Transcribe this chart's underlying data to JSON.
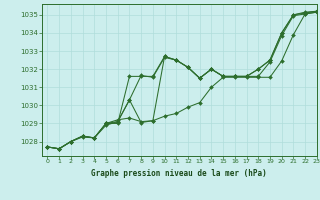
{
  "title": "Graphe pression niveau de la mer (hPa)",
  "bg_color": "#cceeed",
  "grid_color": "#b0dddb",
  "line_color": "#2d6e2d",
  "marker_color": "#2d6e2d",
  "xlim": [
    -0.5,
    23
  ],
  "ylim": [
    1027.2,
    1035.6
  ],
  "yticks": [
    1028,
    1029,
    1030,
    1031,
    1032,
    1033,
    1034,
    1035
  ],
  "xticks": [
    0,
    1,
    2,
    3,
    4,
    5,
    6,
    7,
    8,
    9,
    10,
    11,
    12,
    13,
    14,
    15,
    16,
    17,
    18,
    19,
    20,
    21,
    22,
    23
  ],
  "series": [
    [
      1027.7,
      1027.6,
      1028.0,
      1028.3,
      1028.2,
      1029.0,
      1029.0,
      1031.6,
      1031.6,
      1031.6,
      1032.7,
      1032.5,
      1032.1,
      1031.5,
      1032.0,
      1031.6,
      1031.6,
      1031.6,
      1032.0,
      1032.5,
      1034.0,
      1035.0,
      1035.15,
      1035.2
    ],
    [
      1027.7,
      1027.6,
      1028.0,
      1028.3,
      1028.2,
      1029.0,
      1029.2,
      1029.3,
      1029.1,
      1029.15,
      1029.4,
      1029.55,
      1029.9,
      1030.15,
      1031.0,
      1031.55,
      1031.55,
      1031.55,
      1031.55,
      1031.55,
      1032.45,
      1033.9,
      1035.05,
      1035.15
    ],
    [
      1027.7,
      1027.6,
      1028.0,
      1028.3,
      1028.2,
      1029.0,
      1029.1,
      1030.3,
      1029.05,
      1029.15,
      1032.7,
      1032.5,
      1032.1,
      1031.5,
      1032.0,
      1031.6,
      1031.6,
      1031.6,
      1032.0,
      1032.5,
      1034.0,
      1035.0,
      1035.1,
      1035.2
    ],
    [
      1027.7,
      1027.6,
      1028.0,
      1028.25,
      1028.2,
      1028.9,
      1029.1,
      1030.3,
      1031.65,
      1031.55,
      1032.65,
      1032.5,
      1032.1,
      1031.5,
      1032.0,
      1031.6,
      1031.6,
      1031.6,
      1031.6,
      1032.4,
      1033.85,
      1034.95,
      1035.05,
      1035.15
    ]
  ]
}
